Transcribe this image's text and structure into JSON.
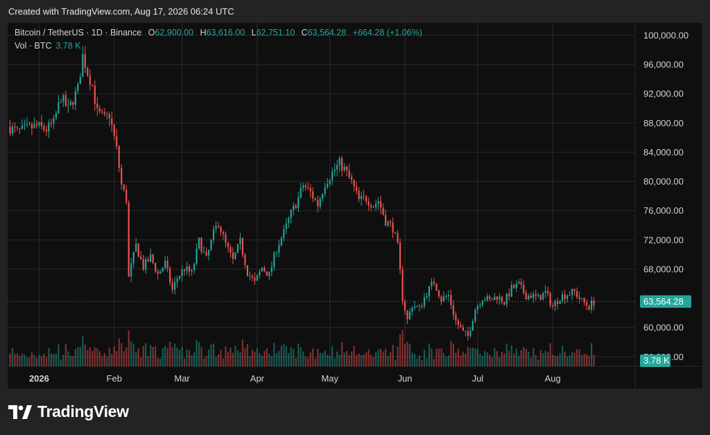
{
  "caption": "Created with TradingView.com, Aug 17, 2026 06:24 UTC",
  "legend": {
    "symbol": "Bitcoin / TetherUS · 1D · Binance",
    "open_label": "O",
    "open": "62,900.00",
    "high_label": "H",
    "high": "63,616.00",
    "low_label": "L",
    "low": "62,751.10",
    "close_label": "C",
    "close": "63,564.28",
    "change": "+664.28 (+1.06%)"
  },
  "volume": {
    "label": "Vol · BTC",
    "value": "3.78 K",
    "badge": "3.78 K"
  },
  "brand": "TradingView",
  "colors": {
    "up": "#26a69a",
    "down": "#ef5350",
    "background": "#0f0f0f",
    "grid": "#2a2a2e"
  },
  "chart_data": {
    "type": "candlestick",
    "y_ticks": [
      "100,000.00",
      "96,000.00",
      "92,000.00",
      "88,000.00",
      "84,000.00",
      "80,000.00",
      "76,000.00",
      "72,000.00",
      "68,000.00",
      "60,000.00",
      "56,000.00"
    ],
    "y_tick_values": [
      100000,
      96000,
      92000,
      88000,
      84000,
      80000,
      76000,
      72000,
      68000,
      60000,
      56000
    ],
    "ylim": [
      54700,
      101700
    ],
    "current_price": 63564.28,
    "current_price_label": "63,564.28",
    "x_ticks": [
      "2026",
      "Feb",
      "Mar",
      "Apr",
      "May",
      "Jun",
      "Jul",
      "Aug"
    ],
    "x_tick_days": [
      0,
      31,
      59,
      90,
      120,
      151,
      181,
      212
    ],
    "x_range_days": [
      -13,
      246
    ],
    "close_anchors": [
      [
        -13,
        87500
      ],
      [
        -9,
        86800
      ],
      [
        -5,
        87200
      ],
      [
        -1,
        87600
      ],
      [
        3,
        87100
      ],
      [
        6,
        88000
      ],
      [
        9,
        91600
      ],
      [
        12,
        89800
      ],
      [
        14,
        91200
      ],
      [
        16,
        92700
      ],
      [
        18,
        97200
      ],
      [
        20,
        94900
      ],
      [
        22,
        93100
      ],
      [
        24,
        89400
      ],
      [
        27,
        88600
      ],
      [
        29,
        89100
      ],
      [
        32,
        84400
      ],
      [
        34,
        79500
      ],
      [
        36,
        77500
      ],
      [
        37,
        66800
      ],
      [
        38,
        68400
      ],
      [
        40,
        71200
      ],
      [
        43,
        68300
      ],
      [
        46,
        69600
      ],
      [
        49,
        67300
      ],
      [
        52,
        68800
      ],
      [
        55,
        65100
      ],
      [
        57,
        66800
      ],
      [
        60,
        68100
      ],
      [
        63,
        67400
      ],
      [
        66,
        71800
      ],
      [
        69,
        69300
      ],
      [
        72,
        72900
      ],
      [
        74,
        74400
      ],
      [
        77,
        71400
      ],
      [
        80,
        69100
      ],
      [
        83,
        71700
      ],
      [
        86,
        67600
      ],
      [
        89,
        66100
      ],
      [
        92,
        68200
      ],
      [
        95,
        67200
      ],
      [
        98,
        70900
      ],
      [
        101,
        73000
      ],
      [
        104,
        75600
      ],
      [
        107,
        77700
      ],
      [
        109,
        79500
      ],
      [
        112,
        78500
      ],
      [
        115,
        76800
      ],
      [
        118,
        79800
      ],
      [
        121,
        81200
      ],
      [
        124,
        82500
      ],
      [
        126,
        81700
      ],
      [
        129,
        79900
      ],
      [
        132,
        77400
      ],
      [
        135,
        77700
      ],
      [
        138,
        76700
      ],
      [
        140,
        77400
      ],
      [
        143,
        74600
      ],
      [
        146,
        73700
      ],
      [
        148,
        71000
      ],
      [
        150,
        64100
      ],
      [
        152,
        61000
      ],
      [
        154,
        63100
      ],
      [
        157,
        62600
      ],
      [
        160,
        64800
      ],
      [
        163,
        66300
      ],
      [
        166,
        63900
      ],
      [
        169,
        64400
      ],
      [
        172,
        60900
      ],
      [
        175,
        59300
      ],
      [
        177,
        58800
      ],
      [
        180,
        62600
      ],
      [
        183,
        64100
      ],
      [
        186,
        63700
      ],
      [
        189,
        64300
      ],
      [
        192,
        63500
      ],
      [
        195,
        65300
      ],
      [
        198,
        65800
      ],
      [
        201,
        64400
      ],
      [
        203,
        64400
      ],
      [
        206,
        64000
      ],
      [
        209,
        64800
      ],
      [
        212,
        62900
      ],
      [
        215,
        64200
      ],
      [
        218,
        64600
      ],
      [
        221,
        64900
      ],
      [
        224,
        63600
      ],
      [
        227,
        62900
      ],
      [
        229,
        63560
      ]
    ],
    "current_day": 229,
    "volume_axis_note": "volume bars drawn proportional in bottom panel"
  }
}
